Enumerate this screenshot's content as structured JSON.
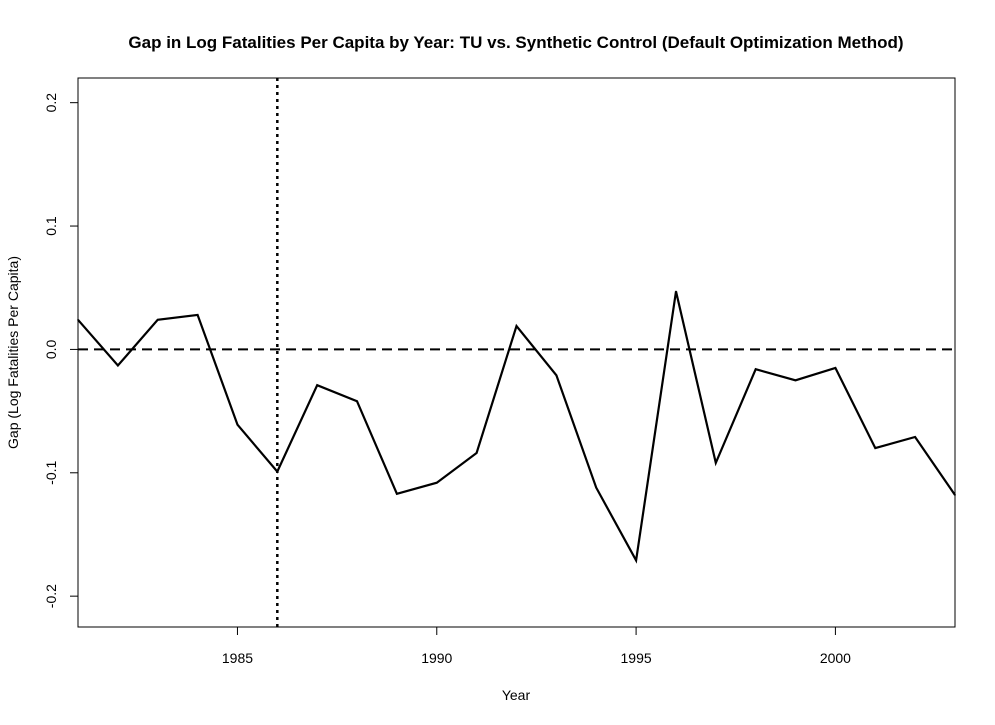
{
  "chart_data": {
    "type": "line",
    "title": "Gap in Log Fatalities Per Capita by Year: TU vs. Synthetic Control (Default Optimization Method)",
    "xlabel": "Year",
    "ylabel": "Gap (Log Fatalities Per Capita)",
    "xlim": [
      1981,
      2003
    ],
    "ylim": [
      -0.225,
      0.22
    ],
    "x_ticks": [
      1985,
      1990,
      1995,
      2000
    ],
    "y_ticks": [
      -0.2,
      -0.1,
      0.0,
      0.1,
      0.2
    ],
    "y_tick_labels": [
      "-0.2",
      "-0.1",
      "0.0",
      "0.1",
      "0.2"
    ],
    "grid": false,
    "reference_lines": {
      "horizontal_zero": 0,
      "treatment_year": 1986
    },
    "series": [
      {
        "color": "#000000",
        "x": [
          1981,
          1982,
          1983,
          1984,
          1985,
          1986,
          1987,
          1988,
          1989,
          1990,
          1991,
          1992,
          1993,
          1994,
          1995,
          1996,
          1997,
          1998,
          1999,
          2000,
          2001,
          2002,
          2003
        ],
        "y": [
          0.024,
          -0.013,
          0.024,
          0.028,
          -0.061,
          -0.099,
          -0.029,
          -0.042,
          -0.117,
          -0.108,
          -0.084,
          0.019,
          -0.021,
          -0.112,
          -0.171,
          0.047,
          -0.092,
          -0.016,
          -0.025,
          -0.015,
          -0.08,
          -0.071,
          -0.118
        ]
      }
    ]
  }
}
